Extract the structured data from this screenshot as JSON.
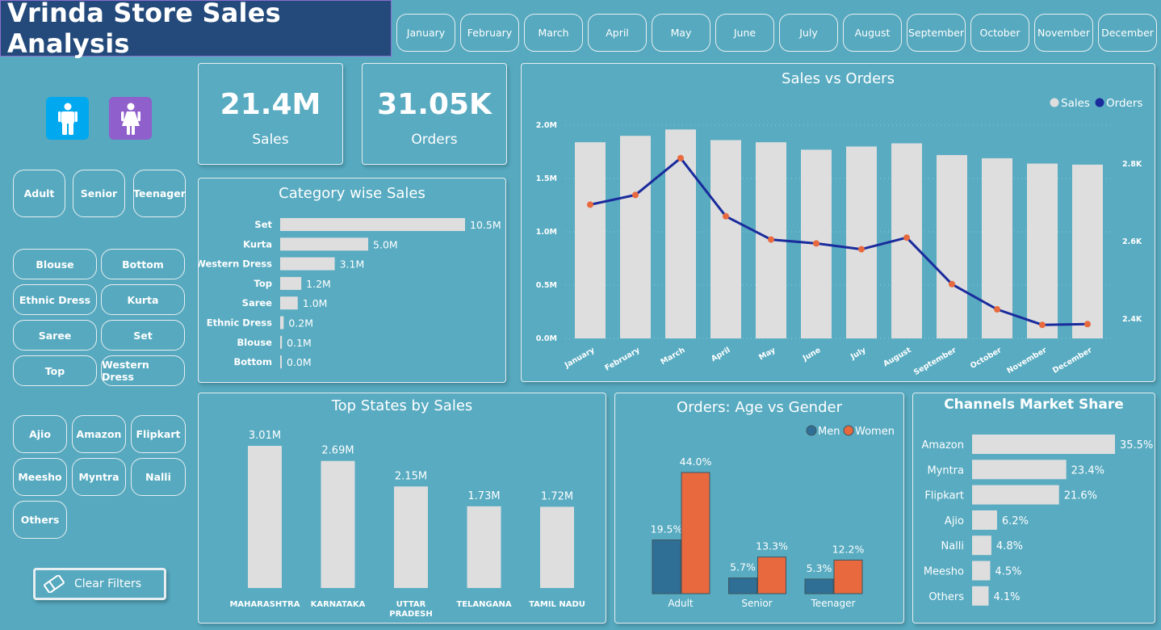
{
  "title": "Vrinda Store Sales Analysis",
  "months": [
    "January",
    "February",
    "March",
    "April",
    "May",
    "June",
    "July",
    "August",
    "September",
    "October",
    "November",
    "December"
  ],
  "gender_icons": {
    "men": "man-icon",
    "women": "woman-icon",
    "men_color": "#00a8ef",
    "women_color": "#8f5fcb"
  },
  "age_filters": [
    "Adult",
    "Senior",
    "Teenager"
  ],
  "category_filters": [
    "Blouse",
    "Bottom",
    "Ethnic Dress",
    "Kurta",
    "Saree",
    "Set",
    "Top",
    "Western Dress"
  ],
  "channel_filters": [
    "Ajio",
    "Amazon",
    "Flipkart",
    "Meesho",
    "Myntra",
    "Nalli",
    "Others"
  ],
  "clear_filters": {
    "label": "Clear Filters",
    "icon": "eraser-icon"
  },
  "kpi": {
    "sales": {
      "value": "21.4M",
      "label": "Sales"
    },
    "orders": {
      "value": "31.05K",
      "label": "Orders"
    }
  },
  "colors": {
    "bar": "#dedede",
    "line": "#1a2b9c",
    "marker": "#e8693e",
    "men": "#2f6f96",
    "women": "#e8693e",
    "bg": "#56a9bf"
  },
  "chart_data": [
    {
      "id": "category",
      "type": "bar",
      "orientation": "horizontal",
      "title": "Category wise Sales",
      "categories": [
        "Set",
        "Kurta",
        "Western Dress",
        "Top",
        "Saree",
        "Ethnic Dress",
        "Blouse",
        "Bottom"
      ],
      "values": [
        10.5,
        5.0,
        3.1,
        1.2,
        1.0,
        0.2,
        0.1,
        0.0
      ],
      "labels": [
        "10.5M",
        "5.0M",
        "3.1M",
        "1.2M",
        "1.0M",
        "0.2M",
        "0.1M",
        "0.0M"
      ],
      "unit": "M"
    },
    {
      "id": "sales_orders",
      "type": "bar",
      "title": "Sales vs Orders",
      "legend": [
        "Sales",
        "Orders"
      ],
      "legend_position": "top-right",
      "categories": [
        "January",
        "February",
        "March",
        "April",
        "May",
        "June",
        "July",
        "August",
        "September",
        "October",
        "November",
        "December"
      ],
      "series": [
        {
          "name": "Sales",
          "type": "bar",
          "axis": "left",
          "values": [
            1.84,
            1.9,
            1.96,
            1.86,
            1.84,
            1.77,
            1.8,
            1.83,
            1.72,
            1.69,
            1.64,
            1.63
          ]
        },
        {
          "name": "Orders",
          "type": "line",
          "axis": "right",
          "values": [
            2.695,
            2.72,
            2.815,
            2.665,
            2.605,
            2.595,
            2.58,
            2.61,
            2.49,
            2.425,
            2.385,
            2.387
          ]
        }
      ],
      "y_left": {
        "ticks": [
          "0.0M",
          "0.5M",
          "1.0M",
          "1.5M",
          "2.0M"
        ],
        "range": [
          0,
          2.0
        ]
      },
      "y_right": {
        "ticks": [
          "2.4K",
          "2.6K",
          "2.8K"
        ],
        "range": [
          2.35,
          2.9
        ]
      }
    },
    {
      "id": "states",
      "type": "bar",
      "title": "Top States by Sales",
      "categories": [
        "MAHARASHTRA",
        "KARNATAKA",
        "UTTAR PRADESH",
        "TELANGANA",
        "TAMIL NADU"
      ],
      "values": [
        3.01,
        2.69,
        2.15,
        1.73,
        1.72
      ],
      "labels": [
        "3.01M",
        "2.69M",
        "2.15M",
        "1.73M",
        "1.72M"
      ]
    },
    {
      "id": "age_gender",
      "type": "bar",
      "title": "Orders: Age vs Gender",
      "legend": [
        "Men",
        "Women"
      ],
      "legend_position": "top-right",
      "categories": [
        "Adult",
        "Senior",
        "Teenager"
      ],
      "series": [
        {
          "name": "Men",
          "values": [
            19.5,
            5.7,
            5.3
          ],
          "labels": [
            "19.5%",
            "5.7%",
            "5.3%"
          ]
        },
        {
          "name": "Women",
          "values": [
            44.0,
            13.3,
            12.2
          ],
          "labels": [
            "44.0%",
            "13.3%",
            "12.2%"
          ]
        }
      ]
    },
    {
      "id": "channels",
      "type": "bar",
      "orientation": "horizontal",
      "title": "Channels Market Share",
      "categories": [
        "Amazon",
        "Myntra",
        "Flipkart",
        "Ajio",
        "Nalli",
        "Meesho",
        "Others"
      ],
      "values": [
        35.5,
        23.4,
        21.6,
        6.2,
        4.8,
        4.5,
        4.1
      ],
      "labels": [
        "35.5%",
        "23.4%",
        "21.6%",
        "6.2%",
        "4.8%",
        "4.5%",
        "4.1%"
      ]
    }
  ]
}
